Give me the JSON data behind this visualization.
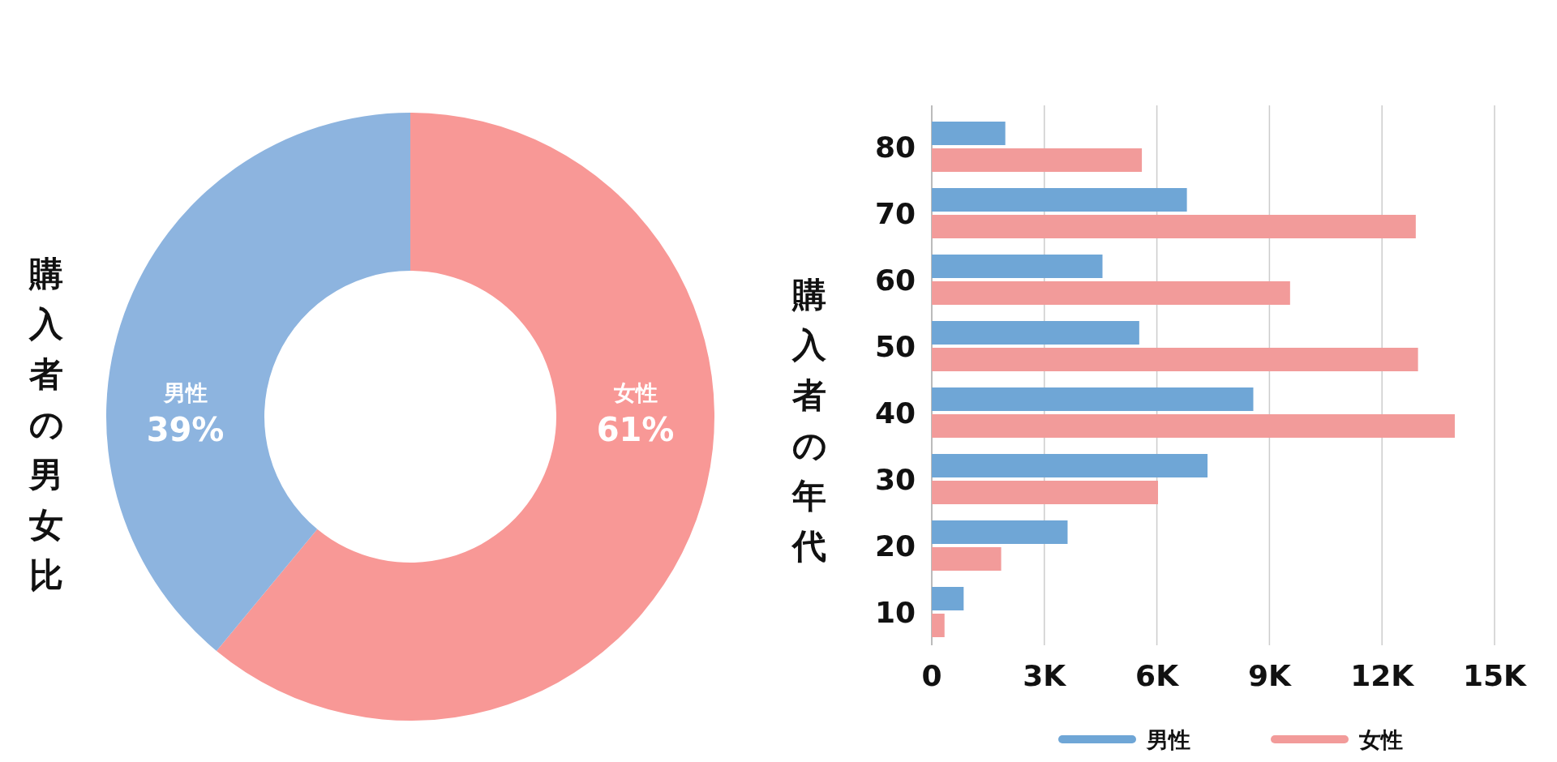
{
  "chart_data": [
    {
      "type": "donut",
      "title": "購入者の男女比",
      "categories": [
        "女性",
        "男性"
      ],
      "values": [
        61,
        39
      ],
      "colors": [
        "#f89896",
        "#8db4df"
      ],
      "value_labels": [
        "61%",
        "39%"
      ]
    },
    {
      "type": "bar",
      "orientation": "horizontal",
      "ylabel": "購入者の年代",
      "categories": [
        "80",
        "70",
        "60",
        "50",
        "40",
        "30",
        "20",
        "10"
      ],
      "series": [
        {
          "name": "男性",
          "color": "#6fa6d6",
          "values": [
            1960,
            6800,
            4550,
            5530,
            8570,
            7350,
            3620,
            850
          ]
        },
        {
          "name": "女性",
          "color": "#f29b9a",
          "values": [
            5600,
            12900,
            9550,
            12960,
            13940,
            6030,
            1850,
            340
          ]
        }
      ],
      "xlim": [
        0,
        15000
      ],
      "xticks": [
        0,
        {
          "value": 3000,
          "label": "3K"
        },
        {
          "value": 6000,
          "label": "6K"
        },
        {
          "value": 9000,
          "label": "9K"
        },
        {
          "value": 12000,
          "label": "12K"
        },
        {
          "value": 15000,
          "label": "15K"
        }
      ],
      "grid": "x",
      "legend": "bottom"
    }
  ]
}
